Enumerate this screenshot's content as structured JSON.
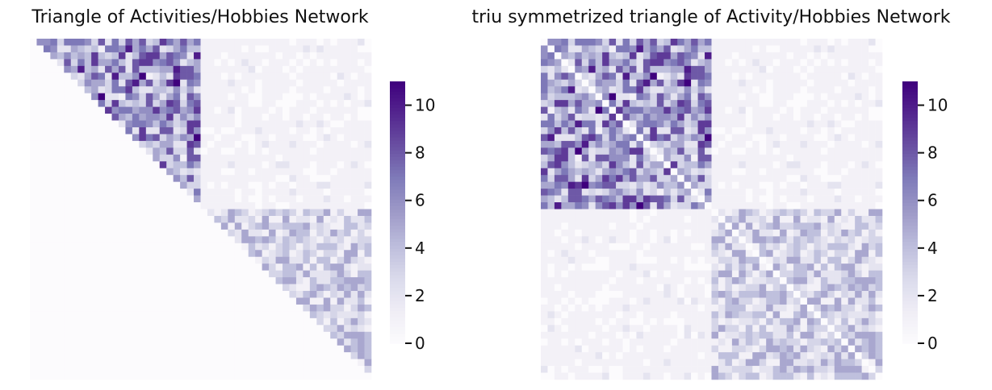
{
  "chart_data": [
    {
      "type": "heatmap",
      "title": "Triangle of Activities/Hobbies Network",
      "matrix_size": 50,
      "mask": "upper-triangle (diagonal and below rendered as 0)",
      "blocks": [
        {
          "rows": "0-24",
          "cols": "0-24",
          "approx_mean": 5.2,
          "approx_max": 11
        },
        {
          "rows": "0-24",
          "cols": "25-49",
          "approx_mean": 0.9
        },
        {
          "rows": "25-49",
          "cols": "25-49",
          "approx_mean": 3.1
        }
      ],
      "colormap": "Purples",
      "colorbar": {
        "min": 0,
        "max": 11,
        "ticks": [
          0,
          2,
          4,
          6,
          8,
          10
        ]
      },
      "xlabel": "",
      "ylabel": ""
    },
    {
      "type": "heatmap",
      "title": "triu symmetrized triangle of Activity/Hobbies Network",
      "matrix_size": 50,
      "mask": "symmetric (upper triangle mirrored)",
      "blocks": [
        {
          "rows": "0-24",
          "cols": "0-24",
          "approx_mean": 5.2,
          "approx_max": 11
        },
        {
          "rows": "0-24",
          "cols": "25-49",
          "approx_mean": 0.9
        },
        {
          "rows": "25-49",
          "cols": "25-49",
          "approx_mean": 3.1
        }
      ],
      "colormap": "Purples",
      "colorbar": {
        "min": 0,
        "max": 11,
        "ticks": [
          0,
          2,
          4,
          6,
          8,
          10
        ]
      },
      "xlabel": "",
      "ylabel": ""
    }
  ]
}
